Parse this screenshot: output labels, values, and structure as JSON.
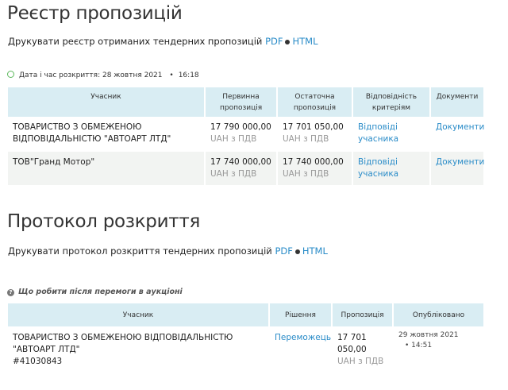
{
  "registry": {
    "title": "Реєстр пропозицій",
    "print_text": "Друкувати реєстр отриманих тендерних пропозицій",
    "pdf": "PDF",
    "html": "HTML",
    "opening_label": "Дата і час розкриття: 28 жовтня 2021",
    "opening_time": "16:18",
    "headers": [
      "Учасник",
      "Первинна пропозиція",
      "Остаточна пропозиція",
      "Відповідність критеріям",
      "Документи"
    ],
    "rows": [
      {
        "participant": "ТОВАРИСТВО З ОБМЕЖЕНОЮ ВІДПОВІДАЛЬНІСТЮ \"АВТОАРТ ЛТД\"",
        "initial": "17 790 000,00",
        "final": "17 701 050,00",
        "currency": "UAH з ПДВ",
        "criteria": "Відповіді учасника",
        "docs": "Документи"
      },
      {
        "participant": "ТОВ\"Гранд Мотор\"",
        "initial": "17 740 000,00",
        "final": "17 740 000,00",
        "currency": "UAH з ПДВ",
        "criteria": "Відповіді учасника",
        "docs": "Документи"
      }
    ]
  },
  "protocol": {
    "title": "Протокол розкриття",
    "print_text": "Друкувати протокол розкриття тендерних пропозицій",
    "pdf": "PDF",
    "html": "HTML",
    "help": "Що робити після перемоги в аукціоні",
    "headers": [
      "Учасник",
      "Рішення",
      "Пропозиція",
      "Опубліковано"
    ],
    "row": {
      "participant": "ТОВАРИСТВО З ОБМЕЖЕНОЮ ВІДПОВІДАЛЬНІСТЮ \"АВТОАРТ ЛТД\"",
      "id": "#41030843",
      "decision": "Переможець",
      "amount": "17 701 050,00",
      "currency": "UAH з ПДВ",
      "date": "29 жовтня 2021",
      "time": "14:51"
    }
  },
  "colors": {
    "link": "#2a8cc8",
    "header_bg": "#d9edf3",
    "clock": "#5cb85c"
  }
}
